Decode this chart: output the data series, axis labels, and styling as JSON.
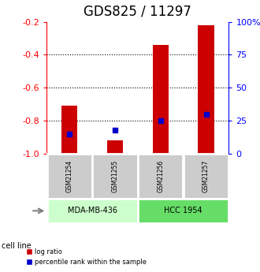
{
  "title": "GDS825 / 11297",
  "samples": [
    "GSM21254",
    "GSM21255",
    "GSM21256",
    "GSM21257"
  ],
  "log_ratios": [
    -0.71,
    -0.92,
    -0.34,
    -0.22
  ],
  "percentile_ranks": [
    0.15,
    0.18,
    0.25,
    0.3
  ],
  "ylim_left": [
    -1.0,
    -0.2
  ],
  "ylim_right": [
    0,
    100
  ],
  "y_ticks_left": [
    -1.0,
    -0.8,
    -0.6,
    -0.4,
    -0.2
  ],
  "y_ticks_right": [
    0,
    25,
    50,
    75,
    100
  ],
  "bar_color": "#cc0000",
  "marker_color": "#0000cc",
  "cell_lines": [
    {
      "label": "MDA-MB-436",
      "samples": [
        0,
        1
      ],
      "color": "#ccffcc"
    },
    {
      "label": "HCC 1954",
      "samples": [
        2,
        3
      ],
      "color": "#66dd66"
    }
  ],
  "sample_box_color": "#cccccc",
  "title_fontsize": 12,
  "bar_width": 0.35,
  "dotted_lines": [
    -0.4,
    -0.6,
    -0.8
  ]
}
